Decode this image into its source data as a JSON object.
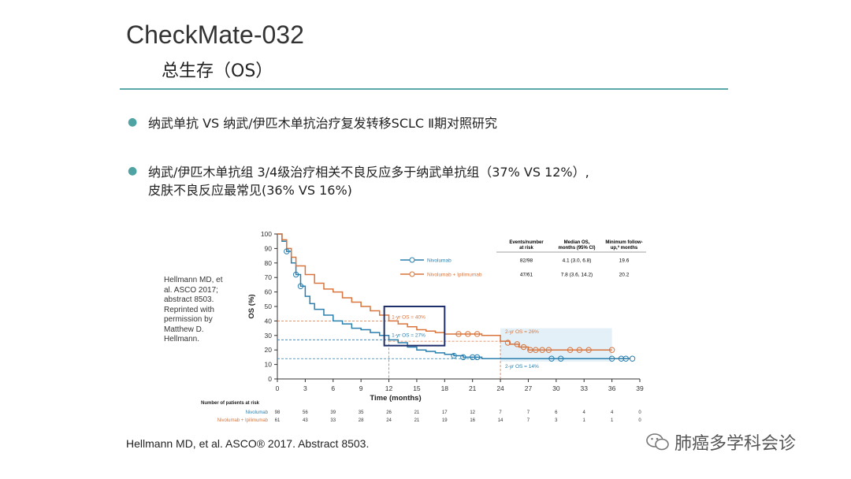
{
  "slide": {
    "title": "CheckMate-032",
    "subtitle": "总生存（OS）",
    "bullets": [
      "纳武单抗  VS  纳武/伊匹木单抗治疗复发转移SCLC Ⅱ期对照研究",
      "纳武/伊匹木单抗组 3/4级治疗相关不良反应多于纳武单抗组（37%  VS  12%）,",
      "皮肤不良反应最常见(36%  VS  16%)"
    ],
    "citation": [
      "Hellmann MD, et",
      "al. ASCO 2017;",
      "abstract 8503.",
      "Reprinted with",
      "permission by",
      "Matthew D.",
      "Hellmann."
    ],
    "footer": "Hellmann MD, et al. ASCO® 2017. Abstract 8503.",
    "watermark": "肺癌多学科会诊"
  },
  "colors": {
    "accent": "#5ba8a8",
    "nivolumab": "#2a7fae",
    "combo": "#d9743c",
    "highlight_box": "#1f2f6b",
    "shade": "#e3f0f8"
  },
  "chart_data": {
    "type": "line",
    "xlabel": "Time (months)",
    "ylabel": "OS (%)",
    "xlim": [
      0,
      39
    ],
    "ylim": [
      0,
      100
    ],
    "xticks": [
      0,
      3,
      6,
      9,
      12,
      15,
      18,
      21,
      24,
      27,
      30,
      33,
      36,
      39
    ],
    "yticks": [
      0,
      10,
      20,
      30,
      40,
      50,
      60,
      70,
      80,
      90,
      100
    ],
    "legend_placement": "top-right",
    "legend_headers": [
      "Events/number at risk",
      "Median OS, months (95% CI)",
      "Minimum follow-up,ª months"
    ],
    "series": [
      {
        "name": "Nivolumab",
        "events": "82/98",
        "median_os": "4.1 (3.0, 6.8)",
        "min_followup": "19.6",
        "x": [
          0,
          0.5,
          1,
          1.5,
          2,
          2.5,
          3,
          3.5,
          4,
          5,
          6,
          7,
          8,
          9,
          10,
          11,
          12,
          13,
          14,
          15,
          16,
          17,
          18,
          19,
          20,
          22,
          24,
          30,
          36,
          38
        ],
        "y": [
          100,
          95,
          88,
          80,
          72,
          64,
          57,
          52,
          48,
          44,
          40,
          38,
          35,
          34,
          32,
          30,
          27,
          25,
          22,
          20,
          19,
          18,
          17,
          16,
          15,
          14,
          14,
          14,
          14,
          14
        ],
        "censor_x": [
          1,
          2,
          2.5,
          19,
          20,
          21,
          21.5,
          29.5,
          30.5,
          36,
          37,
          37.5,
          38.2
        ],
        "censor_y": [
          88,
          72,
          64,
          16,
          15,
          15,
          15,
          14,
          14,
          14,
          14,
          14,
          14
        ]
      },
      {
        "name": "Nivolumab + Ipilimumab",
        "events": "47/61",
        "median_os": "7.8 (3.6, 14.2)",
        "min_followup": "20.2",
        "x": [
          0,
          0.5,
          1,
          1.5,
          2,
          3,
          4,
          5,
          6,
          7,
          8,
          9,
          10,
          11,
          12,
          13,
          14,
          15,
          16,
          17,
          18,
          20,
          22,
          24,
          25,
          26,
          27,
          28,
          30,
          33,
          36
        ],
        "y": [
          100,
          96,
          90,
          84,
          78,
          72,
          66,
          62,
          60,
          56,
          53,
          50,
          47,
          44,
          40,
          38,
          36,
          34,
          33,
          32,
          31,
          31,
          30,
          26,
          24,
          22,
          20,
          20,
          20,
          20,
          20
        ],
        "censor_x": [
          19.5,
          20.5,
          21.5,
          24.8,
          25.8,
          26.5,
          27.2,
          27.8,
          28.5,
          29.2,
          31.5,
          32.5,
          33.5,
          36
        ],
        "censor_y": [
          31,
          31,
          31,
          25,
          24,
          22,
          20,
          20,
          20,
          20,
          20,
          20,
          20,
          20
        ]
      }
    ],
    "annotations": [
      {
        "text": "1-yr OS = 40%",
        "x": 12,
        "y": 40
      },
      {
        "text": "1-yr OS = 27%",
        "x": 12,
        "y": 27
      },
      {
        "text": "2-yr OS = 26%",
        "x": 24,
        "y": 26
      },
      {
        "text": "2-yr OS = 14%",
        "x": 24,
        "y": 14
      }
    ],
    "risk_table": {
      "header": "Number of patients at risk",
      "rows": [
        {
          "name": "Nivolumab",
          "values": [
            98,
            56,
            39,
            35,
            26,
            21,
            17,
            12,
            7,
            7,
            6,
            4,
            4,
            0
          ]
        },
        {
          "name": "Nivolumab + Ipilimumab",
          "values": [
            61,
            43,
            33,
            28,
            24,
            21,
            19,
            16,
            14,
            7,
            3,
            1,
            1,
            0
          ]
        }
      ]
    }
  }
}
